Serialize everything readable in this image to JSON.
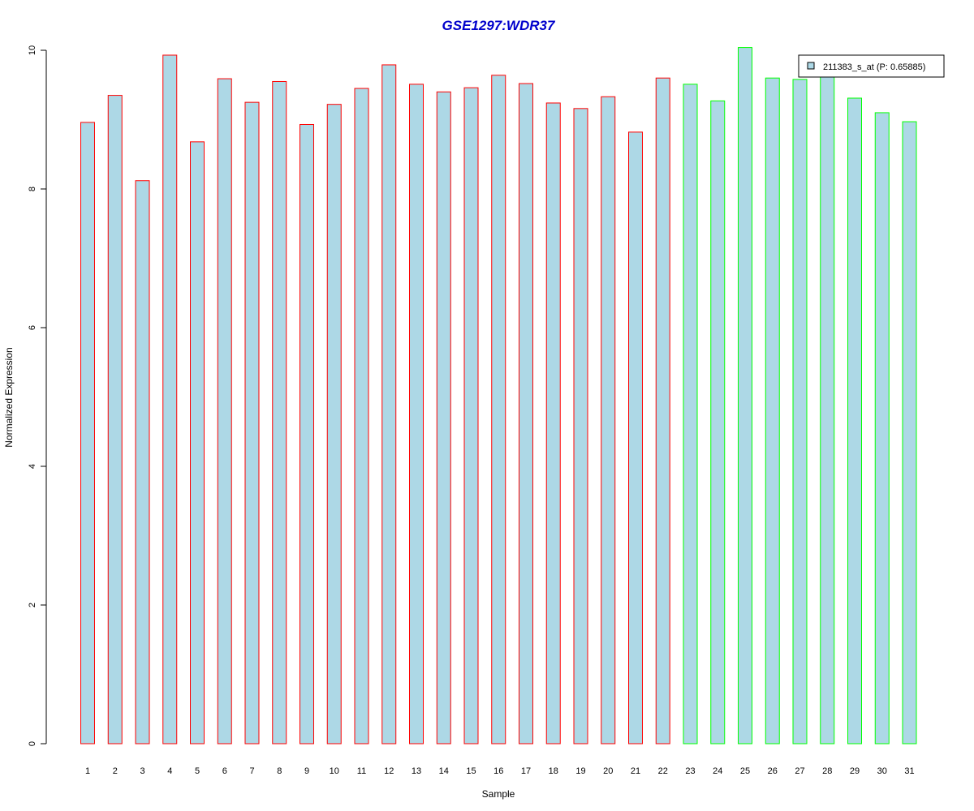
{
  "chart_data": {
    "type": "bar",
    "title": "GSE1297:WDR37",
    "xlabel": "Sample",
    "ylabel": "Normalized Expression",
    "ylim": [
      0,
      10
    ],
    "yticks": [
      "0",
      "2",
      "4",
      "6",
      "8",
      "10"
    ],
    "categories": [
      "1",
      "2",
      "3",
      "4",
      "5",
      "6",
      "7",
      "8",
      "9",
      "10",
      "11",
      "12",
      "13",
      "14",
      "15",
      "16",
      "17",
      "18",
      "19",
      "20",
      "21",
      "22",
      "23",
      "24",
      "25",
      "26",
      "27",
      "28",
      "29",
      "30",
      "31"
    ],
    "values": [
      8.96,
      9.35,
      8.12,
      9.93,
      8.68,
      9.59,
      9.25,
      9.55,
      8.93,
      9.22,
      9.45,
      9.79,
      9.51,
      9.4,
      9.46,
      9.64,
      9.52,
      9.24,
      9.16,
      9.33,
      8.82,
      9.6,
      9.51,
      9.27,
      10.04,
      9.6,
      9.58,
      9.66,
      9.31,
      9.1,
      8.97
    ],
    "groups": [
      "red",
      "red",
      "red",
      "red",
      "red",
      "red",
      "red",
      "red",
      "red",
      "red",
      "red",
      "red",
      "red",
      "red",
      "red",
      "red",
      "red",
      "red",
      "red",
      "red",
      "red",
      "red",
      "green",
      "green",
      "green",
      "green",
      "green",
      "green",
      "green",
      "green",
      "green"
    ],
    "colors": {
      "fill": "#add8e6",
      "red": "#ff0000",
      "green": "#00ff00",
      "title": "#0000cc"
    },
    "legend": {
      "label": "211383_s_at (P: 0.65885)",
      "position": "top-right"
    },
    "grid": false
  }
}
